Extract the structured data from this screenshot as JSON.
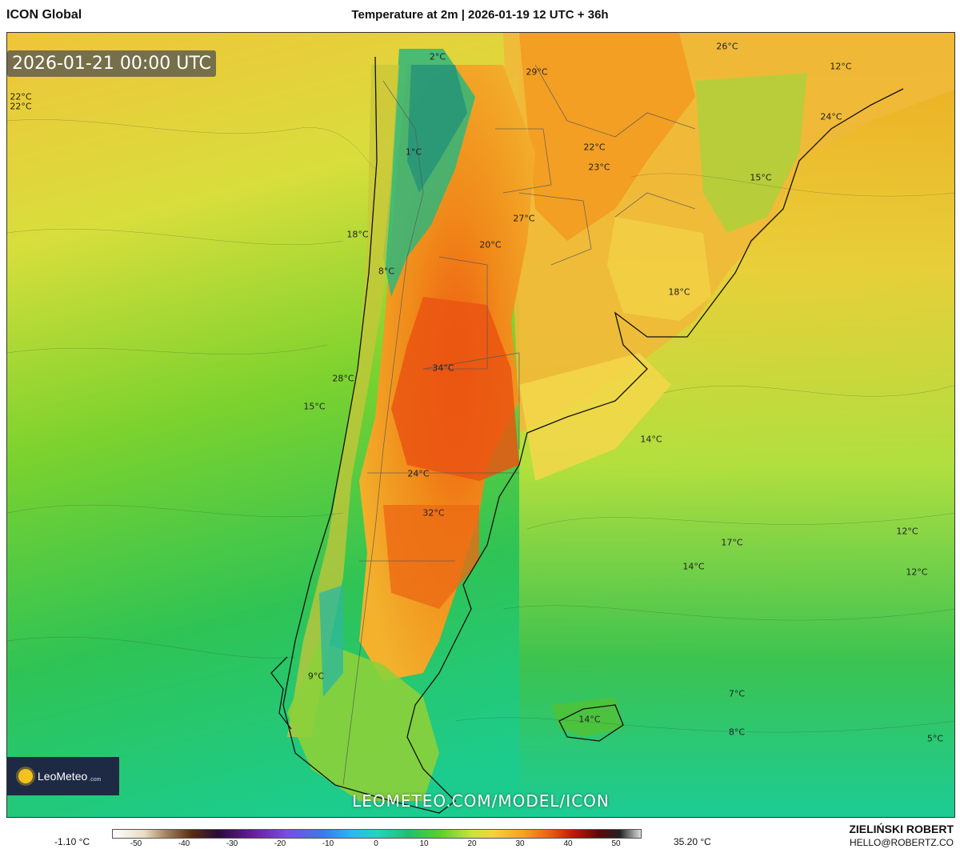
{
  "header": {
    "model": "ICON Global",
    "title": "Temperature at 2m | 2026-01-19 12 UTC + 36h"
  },
  "map": {
    "valid_time": "2026-01-21 00:00 UTC",
    "region": "Southern South America",
    "labels": [
      {
        "text": "2°C"
      },
      {
        "text": "29°C"
      },
      {
        "text": "26°C"
      },
      {
        "text": "12°C"
      },
      {
        "text": "22°C"
      },
      {
        "text": "22°C"
      },
      {
        "text": "24°C"
      },
      {
        "text": "1°C"
      },
      {
        "text": "22°C"
      },
      {
        "text": "23°C"
      },
      {
        "text": "15°C"
      },
      {
        "text": "27°C"
      },
      {
        "text": "18°C"
      },
      {
        "text": "20°C"
      },
      {
        "text": "8°C"
      },
      {
        "text": "18°C"
      },
      {
        "text": "34°C"
      },
      {
        "text": "28°C"
      },
      {
        "text": "15°C"
      },
      {
        "text": "14°C"
      },
      {
        "text": "24°C"
      },
      {
        "text": "32°C"
      },
      {
        "text": "12°C"
      },
      {
        "text": "17°C"
      },
      {
        "text": "14°C"
      },
      {
        "text": "12°C"
      },
      {
        "text": "9°C"
      },
      {
        "text": "7°C"
      },
      {
        "text": "14°C"
      },
      {
        "text": "8°C"
      },
      {
        "text": "5°C"
      }
    ]
  },
  "brand": {
    "name": "LeoMeteo",
    "suffix": ".com"
  },
  "watermark": "LEOMETEO.COM/MODEL/ICON",
  "colorbar": {
    "min_label": "-1.10 °C",
    "max_label": "35.20 °C",
    "ticks": [
      "-50",
      "-40",
      "-30",
      "-20",
      "-10",
      "0",
      "10",
      "20",
      "30",
      "40",
      "50"
    ],
    "tick_values": [
      -50,
      -40,
      -30,
      -20,
      -10,
      0,
      10,
      20,
      30,
      40,
      50
    ],
    "range": [
      -55,
      55
    ],
    "unit": "°C"
  },
  "credit": {
    "name": "ZIELIŃSKI ROBERT",
    "email": "HELLO@ROBERTZ.CO"
  }
}
